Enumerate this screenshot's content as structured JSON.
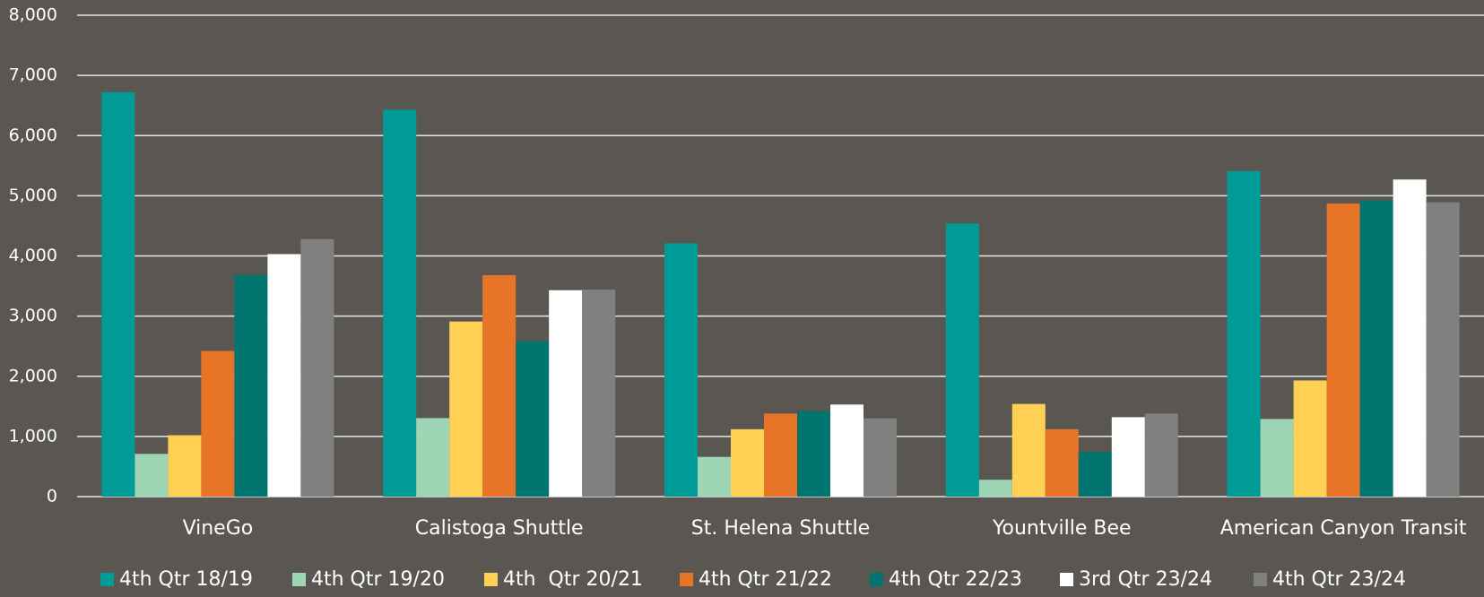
{
  "chart_data": {
    "type": "bar",
    "categories": [
      "VineGo",
      "Calistoga Shuttle",
      "St. Helena Shuttle",
      "Yountville Bee",
      "American Canyon Transit"
    ],
    "series": [
      {
        "name": "4th Qtr 18/19",
        "color": "#009b96",
        "values": [
          6720,
          6430,
          4210,
          4540,
          5410
        ]
      },
      {
        "name": "4th Qtr 19/20",
        "color": "#9dd5b5",
        "values": [
          710,
          1305,
          660,
          280,
          1290
        ]
      },
      {
        "name": "4th  Qtr 20/21",
        "color": "#ffd054",
        "values": [
          1020,
          2910,
          1120,
          1540,
          1930
        ]
      },
      {
        "name": "4th Qtr 21/22",
        "color": "#e87428",
        "values": [
          2420,
          3680,
          1380,
          1120,
          4870
        ]
      },
      {
        "name": "4th Qtr 22/23",
        "color": "#00756f",
        "values": [
          3680,
          2580,
          1420,
          740,
          4920
        ]
      },
      {
        "name": "3rd Qtr 23/24",
        "color": "#ffffff",
        "values": [
          4030,
          3430,
          1530,
          1320,
          5270
        ]
      },
      {
        "name": "4th Qtr 23/24",
        "color": "#808080",
        "values": [
          4280,
          3440,
          1300,
          1380,
          4890
        ]
      }
    ],
    "ylim": [
      0,
      8000
    ],
    "yticks": [
      0,
      {
        "value": 1000,
        "label": "1,000"
      },
      {
        "value": 2000,
        "label": "2,000"
      },
      {
        "value": 3000,
        "label": "3,000"
      },
      {
        "value": 4000,
        "label": "4,000"
      },
      {
        "value": 5000,
        "label": "5,000"
      },
      {
        "value": 6000,
        "label": "6,000"
      },
      {
        "value": 7000,
        "label": "7,000"
      },
      {
        "value": 8000,
        "label": "8,000"
      }
    ],
    "grid": true,
    "legend": "bottom"
  }
}
